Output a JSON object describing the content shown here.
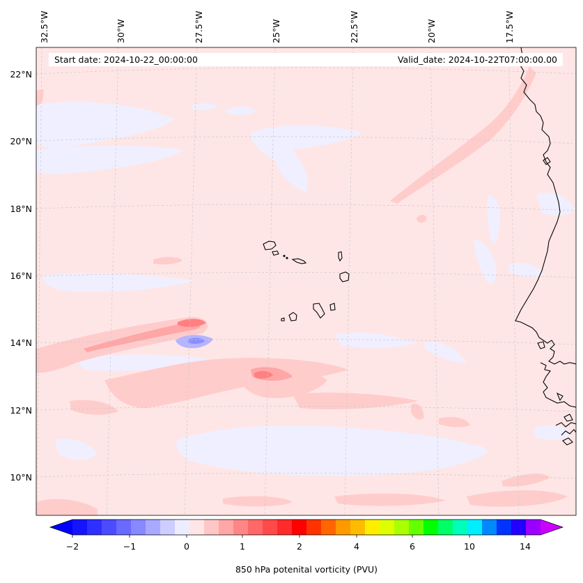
{
  "header": {
    "start_label": "Start date: 2024-10-22_00:00:00",
    "valid_label": "Valid_date: 2024-10-22T07:00:00.00"
  },
  "axes": {
    "lon_labels": [
      "32.5°W",
      "30°W",
      "27.5°W",
      "25°W",
      "22.5°W",
      "20°W",
      "17.5°W"
    ],
    "lat_labels": [
      "22°N",
      "20°N",
      "18°N",
      "16°N",
      "14°N",
      "12°N",
      "10°N"
    ]
  },
  "colorbar": {
    "title": "850 hPa potenital vorticity (PVU)",
    "tick_labels": [
      "−2",
      "−1",
      "0",
      "1",
      "2",
      "4",
      "6",
      "10",
      "14"
    ],
    "colors": [
      "#1414ff",
      "#2f2fff",
      "#4b4bff",
      "#6a6aff",
      "#8888ff",
      "#a9a9ff",
      "#cdcdff",
      "#ededff",
      "#ffe6e6",
      "#ffc6c6",
      "#ffa6a6",
      "#ff8686",
      "#ff6868",
      "#ff4a4a",
      "#ff2a2a",
      "#ff0000",
      "#ff3300",
      "#ff6600",
      "#ff9900",
      "#ffbb00",
      "#ffee00",
      "#ddff00",
      "#aaff00",
      "#66ff00",
      "#00ff00",
      "#00ff66",
      "#00ffbb",
      "#00eeff",
      "#0088ff",
      "#0033ff",
      "#2200ff",
      "#9900ff"
    ],
    "extend_min_color": "#0000ff",
    "extend_max_color": "#cc00ff"
  },
  "field_colors": {
    "background": "#ffe6e6",
    "weak_neg": "#efefff",
    "neg": "#b4b4ff",
    "weak_pos": "#ffcccc",
    "pos": "#ff9a9a"
  }
}
